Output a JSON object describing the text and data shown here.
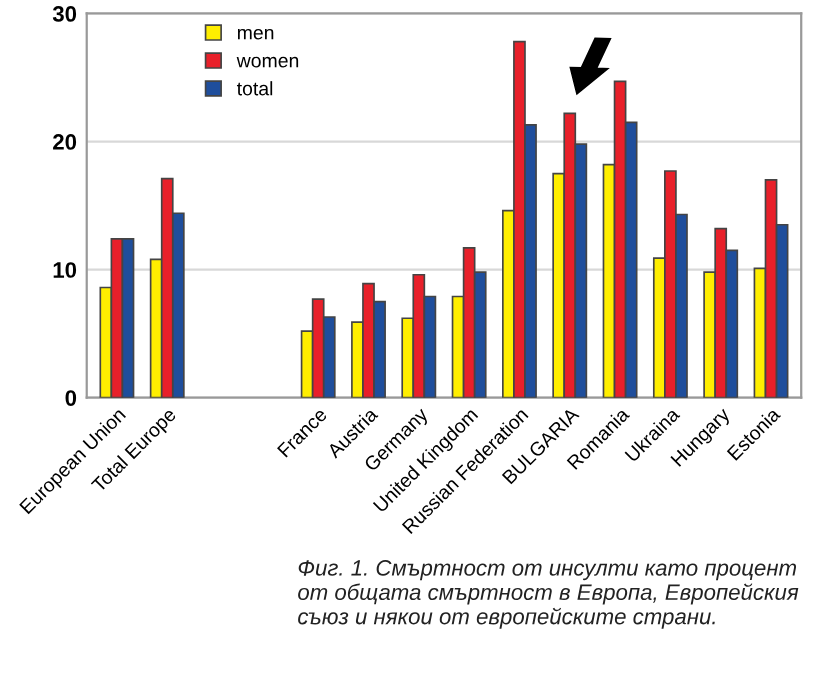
{
  "chart_data": {
    "type": "bar",
    "categories": [
      "European Union",
      "Total Europe",
      null,
      null,
      "France",
      "Austria",
      "Germany",
      "United Kingdom",
      "Russian Federation",
      "BULGARIA",
      "Romania",
      "Ukraina",
      "Hungary",
      "Estonia"
    ],
    "series": [
      {
        "name": "men",
        "color": "#ffee00",
        "values": [
          8.6,
          10.8,
          null,
          null,
          5.2,
          5.9,
          6.2,
          7.9,
          14.6,
          17.5,
          18.2,
          10.9,
          9.8,
          10.1
        ]
      },
      {
        "name": "women",
        "color": "#e8202a",
        "values": [
          12.4,
          17.1,
          null,
          null,
          7.7,
          8.9,
          9.6,
          11.7,
          27.8,
          22.2,
          24.7,
          17.7,
          13.2,
          17.0
        ]
      },
      {
        "name": "total",
        "color": "#1f4e9c",
        "values": [
          12.4,
          14.4,
          null,
          null,
          6.3,
          7.5,
          7.9,
          9.8,
          21.3,
          19.8,
          21.5,
          14.3,
          11.5,
          13.5
        ]
      }
    ],
    "ylim": [
      0,
      30
    ],
    "yticks": [
      0,
      10,
      20,
      30
    ],
    "grid": "y",
    "legend": "top left",
    "annotations": [
      "Фиг. 1. Смъртност от инсулти като процент от общата смъртност в Европа, Европейския съюз и някои от европейските страни."
    ]
  }
}
